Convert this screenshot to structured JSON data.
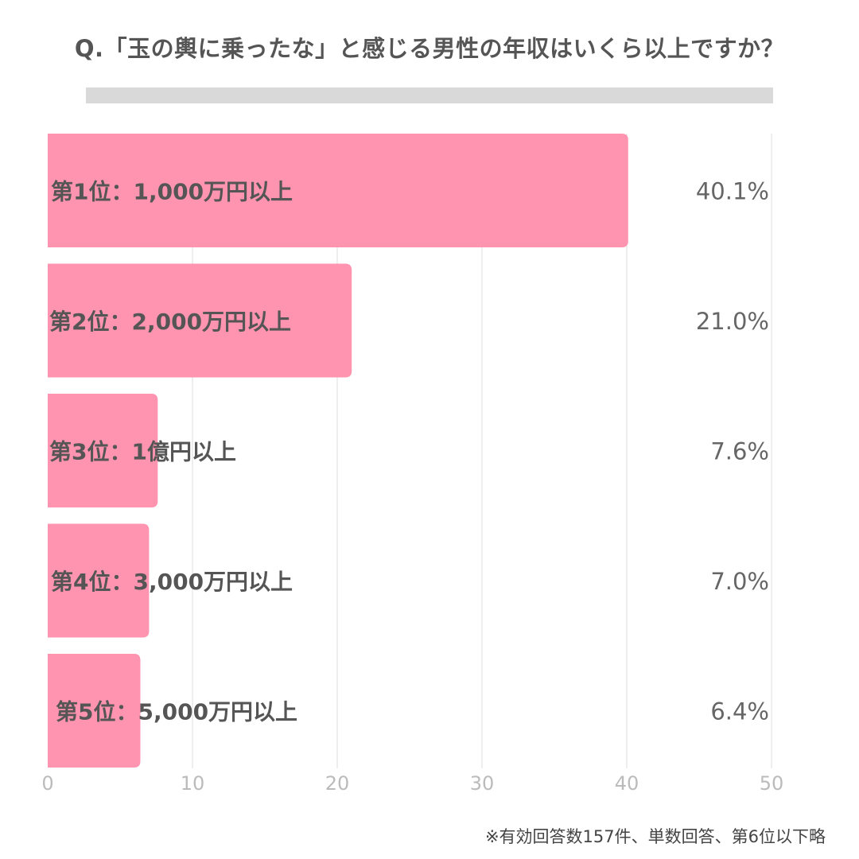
{
  "title": "Q.「玉の輿に乗ったな」と感じる男性の年収はいくら以上ですか？",
  "note": "※有効回答数157件、単数回答、第6位以下略",
  "colors": {
    "bar": "#ff94b0",
    "grid": "#dddddd",
    "text": "#555555",
    "value_text": "#666666",
    "tick_text": "#bbbbbb",
    "title_rule": "#d9d9d9"
  },
  "chart_data": {
    "type": "bar",
    "orientation": "horizontal",
    "categories": [
      "第1位：1,000万円以上",
      "第2位：2,000万円以上",
      "第3位：1億円以上",
      "第4位：3,000万円以上",
      "第5位：5,000万円以上"
    ],
    "values": [
      40.1,
      21.0,
      7.6,
      7.0,
      6.4
    ],
    "value_labels": [
      "40.1%",
      "21.0%",
      "7.6%",
      "7.0%",
      "6.4%"
    ],
    "xlim": [
      0,
      50
    ],
    "xticks": [
      0,
      10,
      20,
      30,
      40,
      50
    ],
    "grid": true,
    "legend": "none"
  }
}
